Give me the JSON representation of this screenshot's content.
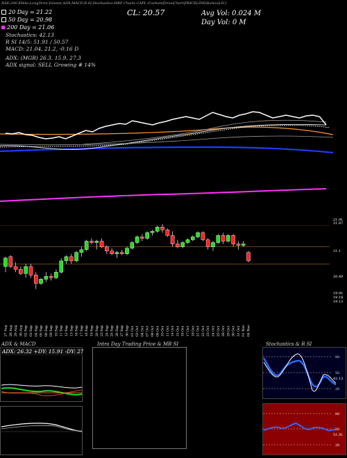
{
  "header": {
    "topline": "NSE:200 EMAs,LongTerm,Volume,ADX,MACD,R SI,Stochastics,MRF Charts CAPL (Carbon|Drive|Chart|PRICELINE|Ratios|LIC)",
    "legend": [
      {
        "text": "20 Day = 21.22",
        "color": "#ffffff",
        "swatch": true
      },
      {
        "text": "50 Day = 20.98",
        "color": "#ffffff",
        "swatch": true
      },
      {
        "text": "200 Day = 21.06",
        "color": "#ff33ff",
        "swatch": true
      }
    ],
    "stoch": "Stochastics: 42.13",
    "rsi_line": "R                    SI 14/5: 51.91 / 50.57",
    "macd_line": "MACD: 21.04, 21.2, -0.16  D",
    "adx_line": "ADX:                              (MGR) 26.3, 15.9, 27.3",
    "adx_signal": "ADX  signal: SELL Growing # 14%",
    "cl": "CL: 20.57",
    "avg_vol": "Avg Vol: 0.024  M",
    "day_vol": "Day Vol: 0   M"
  },
  "chart_data": {
    "type": "candlestick",
    "y_axis_labels": [
      "21.91",
      "21.87",
      "21.1",
      "20.49",
      "19.91",
      "19.18",
      "19.13"
    ],
    "x_labels": [
      "27 Aug",
      "28 Aug",
      "29 Aug",
      "30 Aug",
      "02 Sep",
      "03 Sep",
      "04 Sep",
      "05 Sep",
      "06 Sep",
      "09 Sep",
      "10 Sep",
      "11 Sep",
      "12 Sep",
      "13 Sep",
      "16 Sep",
      "17 Sep",
      "18 Sep",
      "19 Sep",
      "20 Sep",
      "23 Sep",
      "24 Sep",
      "25 Sep",
      "26 Sep",
      "27 Sep",
      "30 Sep",
      "01 Oct",
      "03 Oct",
      "04 Oct",
      "07 Oct",
      "08 Oct",
      "09 Oct",
      "10 Oct",
      "11 Oct",
      "14 Oct",
      "15 Oct",
      "16 Oct",
      "17 Oct",
      "18 Oct",
      "21 Oct",
      "22 Oct",
      "23 Oct",
      "24 Oct",
      "25 Oct",
      "28 Oct",
      "29 Oct",
      "30 Oct",
      "31 Oct",
      "01 Nov",
      "04 Nov"
    ],
    "ylim": [
      18.9,
      22.1
    ],
    "candles": [
      {
        "o": 20.4,
        "h": 20.75,
        "l": 20.2,
        "c": 20.7
      },
      {
        "o": 20.75,
        "h": 20.8,
        "l": 20.35,
        "c": 20.4
      },
      {
        "o": 20.4,
        "h": 20.55,
        "l": 20.2,
        "c": 20.3
      },
      {
        "o": 20.3,
        "h": 20.4,
        "l": 20.1,
        "c": 20.15
      },
      {
        "o": 20.15,
        "h": 20.5,
        "l": 20.0,
        "c": 20.4
      },
      {
        "o": 20.4,
        "h": 20.5,
        "l": 20.0,
        "c": 20.1
      },
      {
        "o": 20.1,
        "h": 20.2,
        "l": 19.6,
        "c": 19.8
      },
      {
        "o": 19.8,
        "h": 20.0,
        "l": 19.75,
        "c": 19.95
      },
      {
        "o": 19.95,
        "h": 20.2,
        "l": 19.85,
        "c": 20.05
      },
      {
        "o": 20.05,
        "h": 20.15,
        "l": 19.9,
        "c": 20.0
      },
      {
        "o": 20.0,
        "h": 20.3,
        "l": 19.95,
        "c": 20.2
      },
      {
        "o": 20.2,
        "h": 20.7,
        "l": 20.15,
        "c": 20.6
      },
      {
        "o": 20.6,
        "h": 20.8,
        "l": 20.5,
        "c": 20.75
      },
      {
        "o": 20.75,
        "h": 20.85,
        "l": 20.5,
        "c": 20.6
      },
      {
        "o": 20.6,
        "h": 20.95,
        "l": 20.55,
        "c": 20.9
      },
      {
        "o": 20.9,
        "h": 21.1,
        "l": 20.75,
        "c": 21.0
      },
      {
        "o": 21.0,
        "h": 21.35,
        "l": 20.95,
        "c": 21.3
      },
      {
        "o": 21.3,
        "h": 21.4,
        "l": 21.2,
        "c": 21.25
      },
      {
        "o": 21.25,
        "h": 21.35,
        "l": 21.0,
        "c": 21.3
      },
      {
        "o": 21.3,
        "h": 21.4,
        "l": 21.05,
        "c": 21.1
      },
      {
        "o": 21.1,
        "h": 21.15,
        "l": 20.85,
        "c": 20.95
      },
      {
        "o": 20.95,
        "h": 21.05,
        "l": 20.8,
        "c": 20.85
      },
      {
        "o": 20.85,
        "h": 20.95,
        "l": 20.7,
        "c": 20.9
      },
      {
        "o": 20.9,
        "h": 21.0,
        "l": 20.8,
        "c": 20.85
      },
      {
        "o": 20.85,
        "h": 21.1,
        "l": 20.8,
        "c": 21.05
      },
      {
        "o": 21.05,
        "h": 21.3,
        "l": 21.0,
        "c": 21.25
      },
      {
        "o": 21.25,
        "h": 21.5,
        "l": 21.2,
        "c": 21.45
      },
      {
        "o": 21.45,
        "h": 21.55,
        "l": 21.3,
        "c": 21.4
      },
      {
        "o": 21.4,
        "h": 21.65,
        "l": 21.35,
        "c": 21.6
      },
      {
        "o": 21.6,
        "h": 21.7,
        "l": 21.5,
        "c": 21.65
      },
      {
        "o": 21.65,
        "h": 21.85,
        "l": 21.6,
        "c": 21.8
      },
      {
        "o": 21.8,
        "h": 21.9,
        "l": 21.6,
        "c": 21.7
      },
      {
        "o": 21.7,
        "h": 21.75,
        "l": 21.45,
        "c": 21.5
      },
      {
        "o": 21.5,
        "h": 21.65,
        "l": 21.1,
        "c": 21.2
      },
      {
        "o": 21.2,
        "h": 21.35,
        "l": 21.05,
        "c": 21.1
      },
      {
        "o": 21.1,
        "h": 21.3,
        "l": 21.05,
        "c": 21.25
      },
      {
        "o": 21.25,
        "h": 21.4,
        "l": 21.2,
        "c": 21.35
      },
      {
        "o": 21.35,
        "h": 21.5,
        "l": 21.3,
        "c": 21.45
      },
      {
        "o": 21.45,
        "h": 21.65,
        "l": 21.4,
        "c": 21.6
      },
      {
        "o": 21.6,
        "h": 21.65,
        "l": 21.3,
        "c": 21.35
      },
      {
        "o": 21.35,
        "h": 21.4,
        "l": 21.0,
        "c": 21.1
      },
      {
        "o": 21.1,
        "h": 21.3,
        "l": 20.95,
        "c": 21.25
      },
      {
        "o": 21.25,
        "h": 21.55,
        "l": 21.2,
        "c": 21.5
      },
      {
        "o": 21.5,
        "h": 21.6,
        "l": 21.2,
        "c": 21.3
      },
      {
        "o": 21.3,
        "h": 21.55,
        "l": 21.25,
        "c": 21.5
      },
      {
        "o": 21.5,
        "h": 21.55,
        "l": 21.1,
        "c": 21.2
      },
      {
        "o": 21.2,
        "h": 21.3,
        "l": 21.0,
        "c": 21.15
      },
      {
        "o": 21.15,
        "h": 21.3,
        "l": 21.1,
        "c": 21.2
      },
      {
        "o": 20.9,
        "h": 20.95,
        "l": 20.55,
        "c": 20.6
      }
    ],
    "price_line": [
      0.48,
      0.47,
      0.49,
      0.46,
      0.45,
      0.42,
      0.4,
      0.41,
      0.43,
      0.4,
      0.44,
      0.48,
      0.52,
      0.5,
      0.55,
      0.58,
      0.6,
      0.62,
      0.61,
      0.66,
      0.64,
      0.62,
      0.6,
      0.63,
      0.65,
      0.68,
      0.7,
      0.72,
      0.7,
      0.68,
      0.73,
      0.78,
      0.75,
      0.72,
      0.7,
      0.74,
      0.76,
      0.79,
      0.78,
      0.74,
      0.7,
      0.72,
      0.74,
      0.72,
      0.7,
      0.73,
      0.74,
      0.72,
      0.6
    ]
  },
  "panels": {
    "adx": {
      "title": "ADX  & MACD",
      "readout": "ADX: 26.32  +DY: 15.91  -DY: 27.27"
    },
    "intra": {
      "title": "Intra  Day Trading Price  & MR                 SI"
    },
    "stoch": {
      "title": "Stochastics & R          SI",
      "ticks": [
        "80",
        "50",
        "20"
      ],
      "value": "42.13"
    },
    "rsi": {
      "ticks": [
        "80",
        "50",
        "20"
      ],
      "value": "51.91"
    }
  }
}
